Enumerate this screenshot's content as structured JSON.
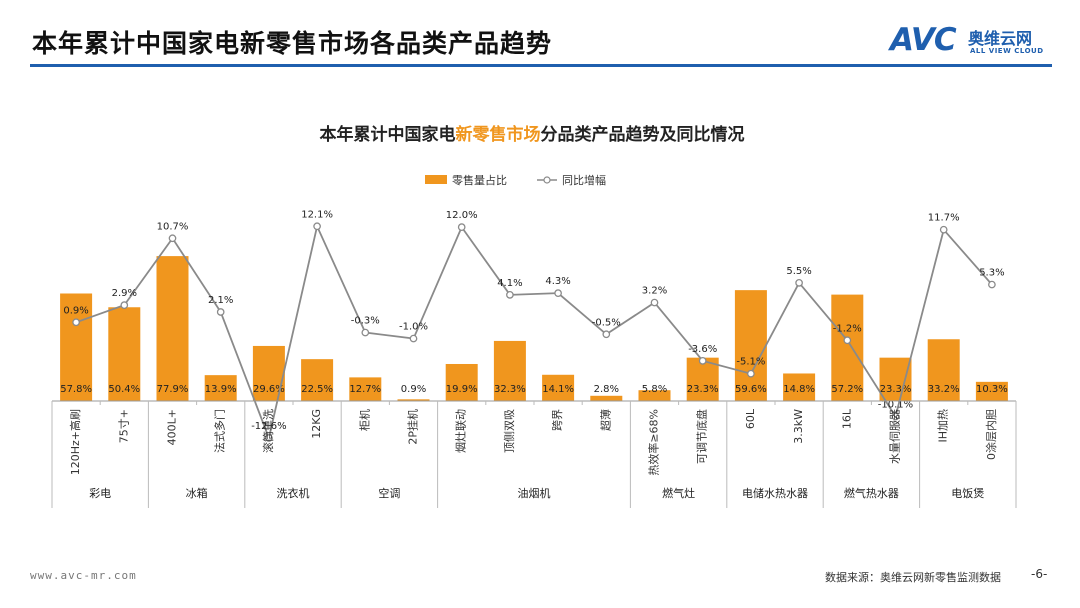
{
  "page": {
    "title": "本年累计中国家电新零售市场各品类产品趋势",
    "logo_word": "AVC",
    "logo_cn": "奥维云网",
    "logo_en": "ALL VIEW CLOUD",
    "footer_url": "www.avc-mr.com",
    "footer_source": "数据来源：奥维云网新零售监测数据",
    "page_number": "-6-"
  },
  "colors": {
    "bar": "#f0961e",
    "line": "#8a8a8a",
    "accent": "#1f5fae",
    "title_highlight": "#f0961e"
  },
  "chart_data": {
    "type": "bar",
    "title_parts": [
      "本年累计中国家电",
      "新零售市场",
      "分品类产品趋势及同比情况"
    ],
    "legend": {
      "bar": "零售量占比",
      "line": "同比增幅"
    },
    "legend_position": "top-center",
    "categories": [
      "120Hz+高刷",
      "75寸+",
      "400L+",
      "法式多门",
      "滚筒单洗",
      "12KG",
      "柜机",
      "2P挂机",
      "烟灶联动",
      "顶侧双吸",
      "跨界",
      "超薄",
      "热效率≥68%",
      "可调节底盘",
      "60L",
      "3.3kW",
      "16L",
      "水量伺服器",
      "IH加热",
      "0涂层内胆"
    ],
    "groups": [
      {
        "name": "彩电",
        "size": 2
      },
      {
        "name": "冰箱",
        "size": 2
      },
      {
        "name": "洗衣机",
        "size": 2
      },
      {
        "name": "空调",
        "size": 2
      },
      {
        "name": "油烟机",
        "size": 4
      },
      {
        "name": "燃气灶",
        "size": 2
      },
      {
        "name": "电储水热水器",
        "size": 2
      },
      {
        "name": "燃气热水器",
        "size": 2
      },
      {
        "name": "电饭煲",
        "size": 2
      }
    ],
    "series": [
      {
        "name": "零售量占比",
        "type": "bar",
        "values": [
          57.8,
          50.4,
          77.9,
          13.9,
          29.6,
          22.5,
          12.7,
          0.9,
          19.9,
          32.3,
          14.1,
          2.8,
          5.8,
          23.3,
          59.6,
          14.8,
          57.2,
          23.3,
          33.2,
          10.3
        ]
      },
      {
        "name": "同比增幅",
        "type": "line",
        "values": [
          0.9,
          2.9,
          10.7,
          2.1,
          -12.6,
          12.1,
          -0.3,
          -1.0,
          12.0,
          4.1,
          4.3,
          -0.5,
          3.2,
          -3.6,
          -5.1,
          5.5,
          -1.2,
          -10.1,
          11.7,
          5.3
        ]
      }
    ],
    "bar_labels": [
      "57.8%",
      "50.4%",
      "77.9%",
      "13.9%",
      "29.6%",
      "22.5%",
      "12.7%",
      "0.9%",
      "19.9%",
      "32.3%",
      "14.1%",
      "2.8%",
      "5.8%",
      "23.3%",
      "59.6%",
      "14.8%",
      "57.2%",
      "23.3%",
      "33.2%",
      "10.3%"
    ],
    "line_labels": [
      "0.9%",
      "2.9%",
      "10.7%",
      "2.1%",
      "-12.6%",
      "12.1%",
      "-0.3%",
      "-1.0%",
      "12.0%",
      "4.1%",
      "4.3%",
      "-0.5%",
      "3.2%",
      "-3.6%",
      "-5.1%",
      "5.5%",
      "-1.2%",
      "-10.1%",
      "11.7%",
      "5.3%"
    ],
    "bar_ylim": [
      0,
      100
    ],
    "line_ylim": [
      -14,
      14
    ],
    "grid": false
  }
}
